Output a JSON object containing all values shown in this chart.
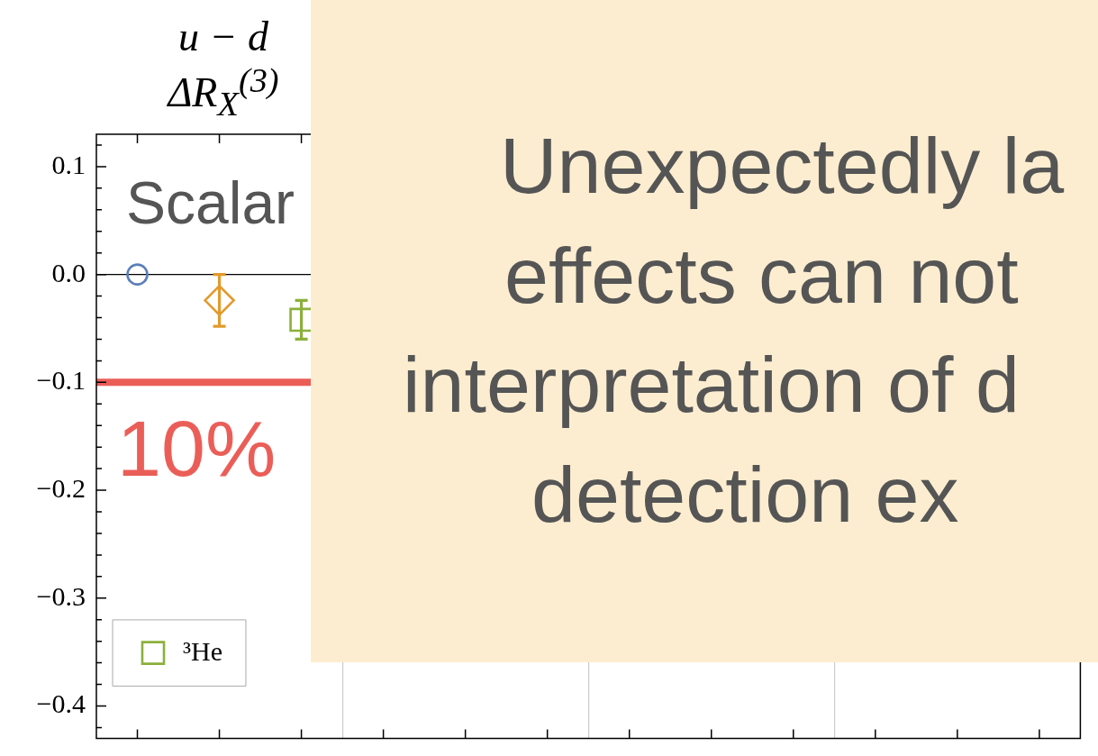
{
  "chart_data": [
    {
      "type": "scatter",
      "title": "u − d",
      "subtitle": "ΔR$_{X}$$^{(3)}$",
      "categories": [
        null,
        null,
        null,
        null
      ],
      "series": [
        {
          "color": "#5b7fb8",
          "marker": "circle",
          "values": [
            0,
            null,
            null,
            null
          ]
        },
        {
          "color": "#e29a2b",
          "marker": "diamond",
          "values": [
            -0.024,
            null,
            null,
            null
          ],
          "errors": [
            0.024,
            null,
            null,
            null
          ]
        },
        {
          "name": "³He",
          "color": "#8cb03a",
          "marker": "square",
          "values": [
            -0.042,
            null,
            null,
            null
          ],
          "errors": [
            0.018,
            null,
            null,
            null
          ]
        }
      ],
      "ylim": [
        -0.43,
        0.13
      ],
      "yticks": [
        {
          "value": 0.12,
          "label": null
        },
        0.1,
        {
          "value": 0.08,
          "label": null
        },
        {
          "value": 0.06,
          "label": null
        },
        {
          "value": 0.04,
          "label": null
        },
        {
          "value": 0.02,
          "label": null
        },
        {
          "value": 0,
          "label": "0.0"
        },
        {
          "value": -0.02,
          "label": null
        },
        {
          "value": -0.04,
          "label": null
        },
        {
          "value": -0.06,
          "label": null
        },
        {
          "value": -0.08,
          "label": null
        },
        {
          "value": -0.1,
          "label": "−0.1"
        },
        {
          "value": -0.12,
          "label": null
        },
        {
          "value": -0.14,
          "label": null
        },
        {
          "value": -0.16,
          "label": null
        },
        {
          "value": -0.18,
          "label": null
        },
        {
          "value": -0.2,
          "label": "−0.2"
        },
        {
          "value": -0.22,
          "label": null
        },
        {
          "value": -0.24,
          "label": null
        },
        {
          "value": -0.26,
          "label": null
        },
        {
          "value": -0.28,
          "label": null
        },
        {
          "value": -0.3,
          "label": "−0.3"
        },
        {
          "value": -0.32,
          "label": null
        },
        {
          "value": -0.34,
          "label": null
        },
        {
          "value": -0.36,
          "label": null
        },
        {
          "value": -0.38,
          "label": null
        },
        {
          "value": -0.4,
          "label": "−0.4"
        },
        {
          "value": -0.42,
          "label": null
        }
      ],
      "grid": "x",
      "legend": "bottom left",
      "tick_labels": "y",
      "ref_lines": [
        {
          "axis": "y",
          "value": 0,
          "color": "#000000"
        },
        {
          "axis": "y",
          "value": -0.1,
          "color": "#eb5e58"
        }
      ],
      "annotations": [
        "Scalar",
        {
          "text": "10%",
          "y": -0.1
        }
      ]
    },
    {
      "type": "other",
      "annotations": [
        "Unexpectedly la",
        "effects can not",
        "interpretation of d",
        "detection ex"
      ]
    }
  ]
}
